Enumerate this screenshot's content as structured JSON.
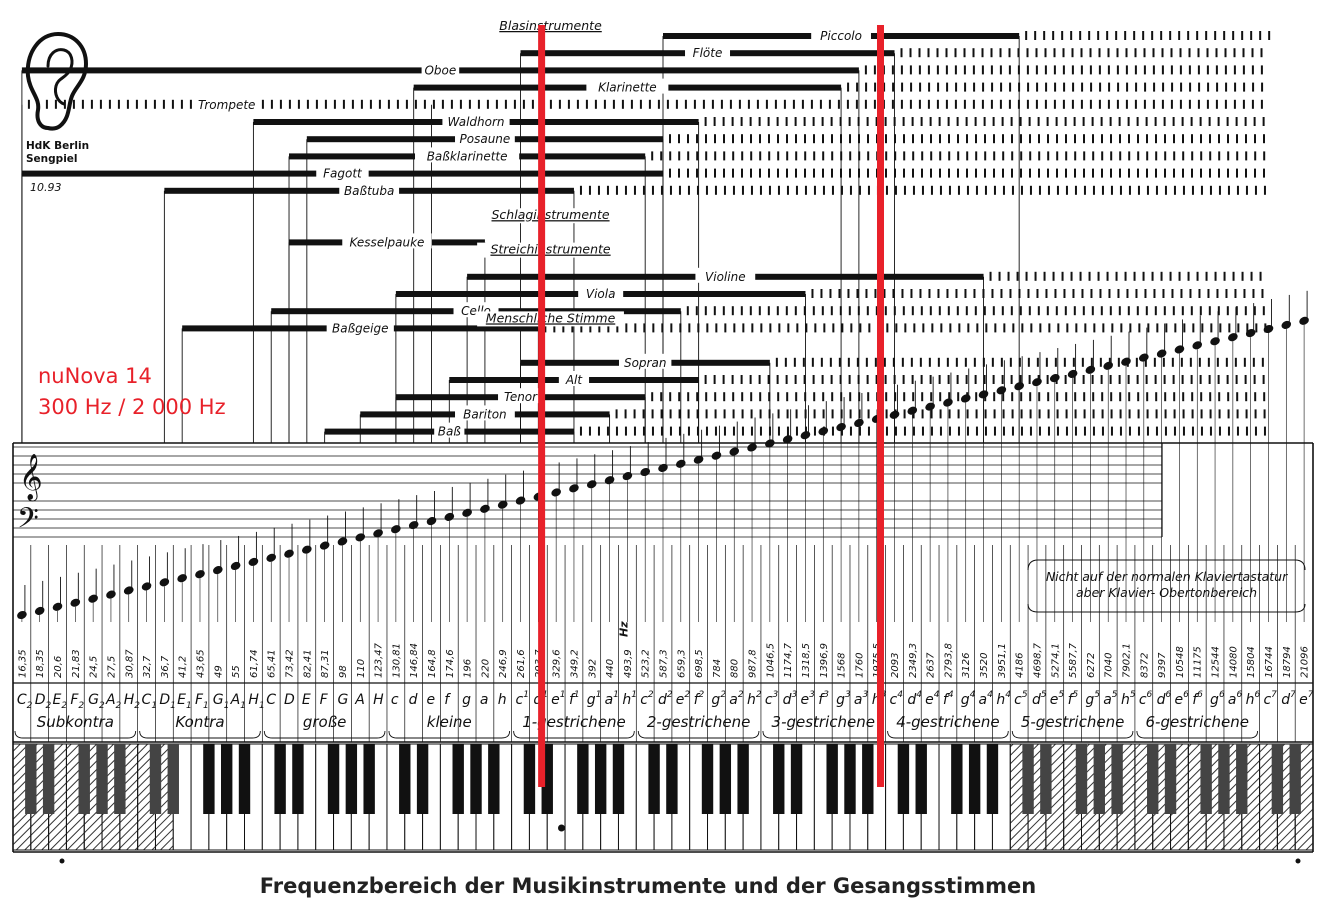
{
  "logo": {
    "name": "ear-icon",
    "line1": "HdK Berlin",
    "line2": "Sengpiel",
    "date": "10.93"
  },
  "overlay": {
    "line1": "nuNova 14",
    "line2": "300 Hz / 2 000 Hz",
    "marker_color": "#e8212a",
    "marker_freqs_hz": [
      300,
      2000
    ]
  },
  "title": "Frequenzbereich der Musikinstrumente und der Gesangsstimmen",
  "hz_unit": "Hz",
  "note_range_caption": [
    "Nicht auf der normalen Klaviertastatur",
    "aber Klavier- Obertonbereich"
  ],
  "groups": [
    {
      "label": "Blasinstrumente",
      "row": 0
    },
    {
      "label": "Schlaginstrumente",
      "row": 11
    },
    {
      "label": "Streichinstrumente",
      "row": 13
    },
    {
      "label": "Menschliche Stimme",
      "row": 17
    }
  ],
  "instruments": [
    {
      "label": "Piccolo",
      "row": 0,
      "low": "d2",
      "high": "c5",
      "ext": "c7"
    },
    {
      "label": "Flöte",
      "row": 1,
      "low": "c1",
      "high": "c4",
      "ext": "c7"
    },
    {
      "label": "Oboe",
      "row": 2,
      "low": "b",
      "high": "a3",
      "ext": "c7"
    },
    {
      "label": "Klarinette",
      "row": 3,
      "low": "d",
      "high": "g3",
      "ext": "c7"
    },
    {
      "label": "Trompete",
      "row": 4,
      "low": "e",
      "high": "b2",
      "ext": "c7"
    },
    {
      "label": "Waldhorn",
      "row": 5,
      "low": "H1",
      "high": "f2",
      "ext": "c7"
    },
    {
      "label": "Posaune",
      "row": 6,
      "low": "E",
      "high": "d2",
      "ext": "c7"
    },
    {
      "label": "Baßklarinette",
      "row": 7,
      "low": "D",
      "high": "c2",
      "ext": "c7"
    },
    {
      "label": "Fagott",
      "row": 8,
      "low": "B1",
      "high": "d2",
      "ext": "c7"
    },
    {
      "label": "Baßtuba",
      "row": 9,
      "low": "D1",
      "high": "f1",
      "ext": "c7"
    },
    {
      "label": "Kesselpauke",
      "row": 12,
      "low": "D",
      "high": "a",
      "ext": "c"
    },
    {
      "label": "Violine",
      "row": 14,
      "low": "g",
      "high": "a4",
      "ext": "c7"
    },
    {
      "label": "Viola",
      "row": 15,
      "low": "c",
      "high": "e3",
      "ext": "c7"
    },
    {
      "label": "Cello",
      "row": 16,
      "low": "C",
      "high": "e2",
      "ext": "c7"
    },
    {
      "label": "Baßgeige",
      "row": 17,
      "low": "E1",
      "high": "d1",
      "ext": "c7"
    },
    {
      "label": "Sopran",
      "row": 19,
      "low": "c1",
      "high": "c3",
      "ext": "c7"
    },
    {
      "label": "Alt",
      "row": 20,
      "low": "f",
      "high": "f2",
      "ext": "c7"
    },
    {
      "label": "Tenor",
      "row": 21,
      "low": "c",
      "high": "c2",
      "ext": "c7"
    },
    {
      "label": "Bariton",
      "row": 22,
      "low": "A",
      "high": "a1",
      "ext": "c7"
    },
    {
      "label": "Baß",
      "row": 23,
      "low": "F",
      "high": "f1",
      "ext": "c7"
    }
  ],
  "notes": [
    {
      "n": "C",
      "sup": "",
      "sub": "2",
      "hz": "16,35"
    },
    {
      "n": "D",
      "sup": "",
      "sub": "2",
      "hz": "18,35"
    },
    {
      "n": "E",
      "sup": "",
      "sub": "2",
      "hz": "20,6"
    },
    {
      "n": "F",
      "sup": "",
      "sub": "2",
      "hz": "21,83"
    },
    {
      "n": "G",
      "sup": "",
      "sub": "2",
      "hz": "24,5"
    },
    {
      "n": "A",
      "sup": "",
      "sub": "2",
      "hz": "27,5"
    },
    {
      "n": "H",
      "sup": "",
      "sub": "2",
      "hz": "30,87"
    },
    {
      "n": "C",
      "sup": "",
      "sub": "1",
      "hz": "32,7"
    },
    {
      "n": "D",
      "sup": "",
      "sub": "1",
      "hz": "36,7"
    },
    {
      "n": "E",
      "sup": "",
      "sub": "1",
      "hz": "41,2"
    },
    {
      "n": "F",
      "sup": "",
      "sub": "1",
      "hz": "43,65"
    },
    {
      "n": "G",
      "sup": "",
      "sub": "1",
      "hz": "49"
    },
    {
      "n": "A",
      "sup": "",
      "sub": "1",
      "hz": "55"
    },
    {
      "n": "H",
      "sup": "",
      "sub": "1",
      "hz": "61,74"
    },
    {
      "n": "C",
      "sup": "",
      "sub": "",
      "hz": "65,41"
    },
    {
      "n": "D",
      "sup": "",
      "sub": "",
      "hz": "73,42"
    },
    {
      "n": "E",
      "sup": "",
      "sub": "",
      "hz": "82,41"
    },
    {
      "n": "F",
      "sup": "",
      "sub": "",
      "hz": "87,31"
    },
    {
      "n": "G",
      "sup": "",
      "sub": "",
      "hz": "98"
    },
    {
      "n": "A",
      "sup": "",
      "sub": "",
      "hz": "110"
    },
    {
      "n": "H",
      "sup": "",
      "sub": "",
      "hz": "123,47"
    },
    {
      "n": "c",
      "sup": "",
      "sub": "",
      "hz": "130,81"
    },
    {
      "n": "d",
      "sup": "",
      "sub": "",
      "hz": "146,84"
    },
    {
      "n": "e",
      "sup": "",
      "sub": "",
      "hz": "164,8"
    },
    {
      "n": "f",
      "sup": "",
      "sub": "",
      "hz": "174,6"
    },
    {
      "n": "g",
      "sup": "",
      "sub": "",
      "hz": "196"
    },
    {
      "n": "a",
      "sup": "",
      "sub": "",
      "hz": "220"
    },
    {
      "n": "h",
      "sup": "",
      "sub": "",
      "hz": "246,9"
    },
    {
      "n": "c",
      "sup": "1",
      "sub": "",
      "hz": "261,6"
    },
    {
      "n": "d",
      "sup": "1",
      "sub": "",
      "hz": "293,7"
    },
    {
      "n": "e",
      "sup": "1",
      "sub": "",
      "hz": "329,6"
    },
    {
      "n": "f",
      "sup": "1",
      "sub": "",
      "hz": "349,2"
    },
    {
      "n": "g",
      "sup": "1",
      "sub": "",
      "hz": "392"
    },
    {
      "n": "a",
      "sup": "1",
      "sub": "",
      "hz": "440"
    },
    {
      "n": "h",
      "sup": "1",
      "sub": "",
      "hz": "493,9"
    },
    {
      "n": "c",
      "sup": "2",
      "sub": "",
      "hz": "523,2"
    },
    {
      "n": "d",
      "sup": "2",
      "sub": "",
      "hz": "587,3"
    },
    {
      "n": "e",
      "sup": "2",
      "sub": "",
      "hz": "659,3"
    },
    {
      "n": "f",
      "sup": "2",
      "sub": "",
      "hz": "698,5"
    },
    {
      "n": "g",
      "sup": "2",
      "sub": "",
      "hz": "784"
    },
    {
      "n": "a",
      "sup": "2",
      "sub": "",
      "hz": "880"
    },
    {
      "n": "h",
      "sup": "2",
      "sub": "",
      "hz": "987,8"
    },
    {
      "n": "c",
      "sup": "3",
      "sub": "",
      "hz": "1046,5"
    },
    {
      "n": "d",
      "sup": "3",
      "sub": "",
      "hz": "1174,7"
    },
    {
      "n": "e",
      "sup": "3",
      "sub": "",
      "hz": "1318,5"
    },
    {
      "n": "f",
      "sup": "3",
      "sub": "",
      "hz": "1396,9"
    },
    {
      "n": "g",
      "sup": "3",
      "sub": "",
      "hz": "1568"
    },
    {
      "n": "a",
      "sup": "3",
      "sub": "",
      "hz": "1760"
    },
    {
      "n": "h",
      "sup": "3",
      "sub": "",
      "hz": "1975,5"
    },
    {
      "n": "c",
      "sup": "4",
      "sub": "",
      "hz": "2093"
    },
    {
      "n": "d",
      "sup": "4",
      "sub": "",
      "hz": "2349,3"
    },
    {
      "n": "e",
      "sup": "4",
      "sub": "",
      "hz": "2637"
    },
    {
      "n": "f",
      "sup": "4",
      "sub": "",
      "hz": "2793,8"
    },
    {
      "n": "g",
      "sup": "4",
      "sub": "",
      "hz": "3126"
    },
    {
      "n": "a",
      "sup": "4",
      "sub": "",
      "hz": "3520"
    },
    {
      "n": "h",
      "sup": "4",
      "sub": "",
      "hz": "3951,1"
    },
    {
      "n": "c",
      "sup": "5",
      "sub": "",
      "hz": "4186"
    },
    {
      "n": "d",
      "sup": "5",
      "sub": "",
      "hz": "4698,7"
    },
    {
      "n": "e",
      "sup": "5",
      "sub": "",
      "hz": "5274,1"
    },
    {
      "n": "f",
      "sup": "5",
      "sub": "",
      "hz": "5587,7"
    },
    {
      "n": "g",
      "sup": "5",
      "sub": "",
      "hz": "6272"
    },
    {
      "n": "a",
      "sup": "5",
      "sub": "",
      "hz": "7040"
    },
    {
      "n": "h",
      "sup": "5",
      "sub": "",
      "hz": "7902,1"
    },
    {
      "n": "c",
      "sup": "6",
      "sub": "",
      "hz": "8372"
    },
    {
      "n": "d",
      "sup": "6",
      "sub": "",
      "hz": "9397"
    },
    {
      "n": "e",
      "sup": "6",
      "sub": "",
      "hz": "10548"
    },
    {
      "n": "f",
      "sup": "6",
      "sub": "",
      "hz": "11175"
    },
    {
      "n": "g",
      "sup": "6",
      "sub": "",
      "hz": "12544"
    },
    {
      "n": "a",
      "sup": "6",
      "sub": "",
      "hz": "14080"
    },
    {
      "n": "h",
      "sup": "6",
      "sub": "",
      "hz": "15804"
    },
    {
      "n": "c",
      "sup": "7",
      "sub": "",
      "hz": "16744"
    },
    {
      "n": "d",
      "sup": "7",
      "sub": "",
      "hz": "18794"
    },
    {
      "n": "e",
      "sup": "7",
      "sub": "",
      "hz": "21096"
    }
  ],
  "octaves": [
    {
      "label": "Subkontra",
      "from": 0,
      "to": 6
    },
    {
      "label": "Kontra",
      "from": 7,
      "to": 13
    },
    {
      "label": "große",
      "from": 14,
      "to": 20
    },
    {
      "label": "kleine",
      "from": 21,
      "to": 27
    },
    {
      "label": "1-gestrichene",
      "from": 28,
      "to": 34
    },
    {
      "label": "2-gestrichene",
      "from": 35,
      "to": 41
    },
    {
      "label": "3-gestrichene",
      "from": 42,
      "to": 48
    },
    {
      "label": "4-gestrichene",
      "from": 49,
      "to": 55
    },
    {
      "label": "5-gestrichene",
      "from": 56,
      "to": 62
    },
    {
      "label": "6-gestrichene",
      "from": 63,
      "to": 69
    }
  ]
}
